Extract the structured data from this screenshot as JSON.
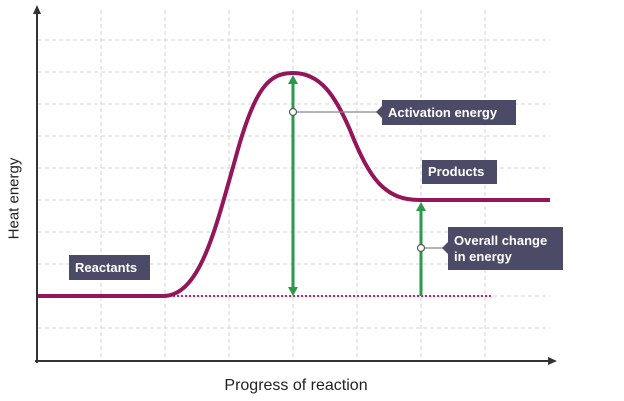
{
  "axes": {
    "y_label": "Heat energy",
    "x_label": "Progress of reaction"
  },
  "labels": {
    "reactants": "Reactants",
    "products": "Products",
    "activation_energy": "Activation energy",
    "overall_change_line1": "Overall change",
    "overall_change_line2": "in energy"
  },
  "colors": {
    "curve": "#93165a",
    "arrow": "#2a9a48",
    "label_bg": "#4b4b67",
    "dotted_line": "#d11a8a",
    "grid": "#d0d0d0",
    "axis": "#333333"
  }
}
